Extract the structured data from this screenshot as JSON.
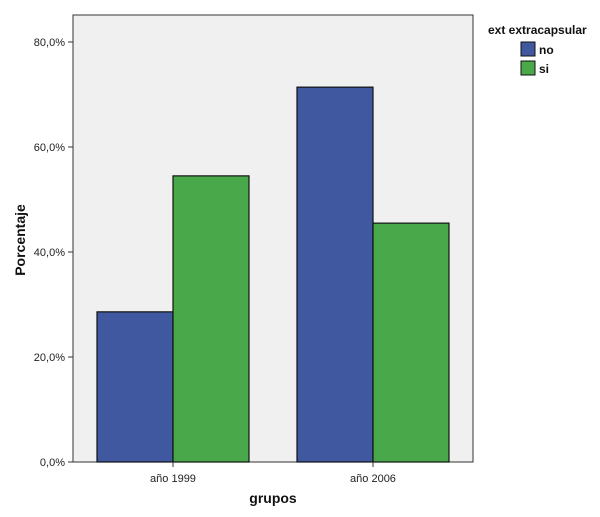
{
  "chart_data": {
    "type": "bar",
    "title": "",
    "xlabel": "grupos",
    "ylabel": "Porcentaje",
    "ylim": [
      0,
      80
    ],
    "yticks": [
      0,
      20,
      40,
      60,
      80
    ],
    "ytick_labels": [
      "0,0%",
      "20,0%",
      "40,0%",
      "60,0%",
      "80,0%"
    ],
    "categories": [
      "año 1999",
      "año 2006"
    ],
    "legend_title": "ext extracapsular",
    "legend_position": "top-right, outside plot",
    "grid": false,
    "plot_background": "#f0f0f0",
    "series": [
      {
        "name": "no",
        "color": "#3f58a0",
        "values": [
          28.6,
          71.4
        ]
      },
      {
        "name": "si",
        "color": "#48a84a",
        "values": [
          54.5,
          45.5
        ]
      }
    ]
  }
}
